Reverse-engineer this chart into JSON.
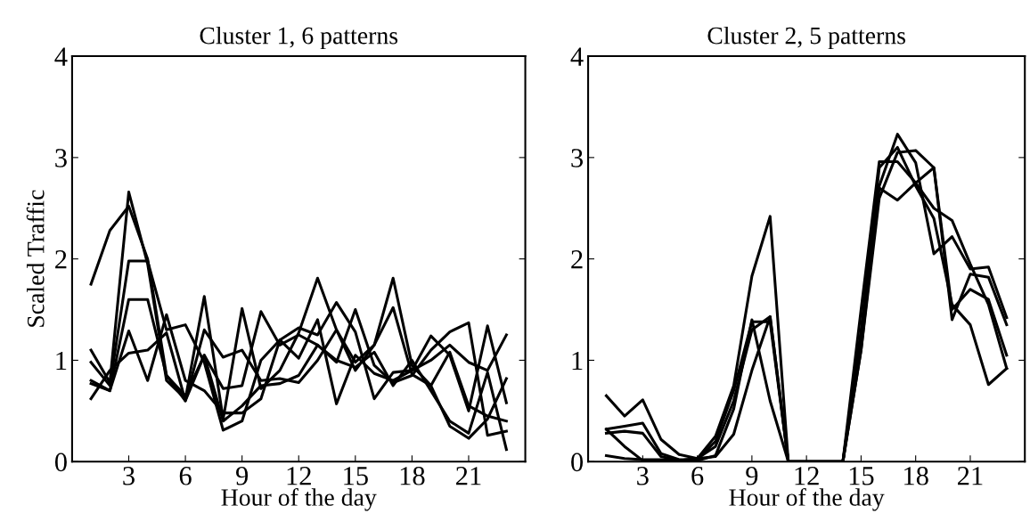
{
  "chart_data": [
    {
      "type": "line",
      "title": "Cluster 1, 6 patterns",
      "xlabel": "Hour of the day",
      "ylabel": "Scaled Traffic",
      "x": [
        1,
        2,
        3,
        4,
        5,
        6,
        7,
        8,
        9,
        10,
        11,
        12,
        13,
        14,
        15,
        16,
        17,
        18,
        19,
        20,
        21,
        22,
        23
      ],
      "xlim": [
        0,
        24
      ],
      "xticks": [
        3,
        6,
        9,
        12,
        15,
        18,
        21
      ],
      "ylim": [
        0,
        4
      ],
      "yticks": [
        0,
        1,
        2,
        3,
        4
      ],
      "grid": false,
      "legend": false,
      "series": [
        {
          "color": "#000000",
          "values": [
            1.75,
            2.28,
            2.52,
            2.0,
            0.85,
            0.65,
            1.05,
            0.72,
            0.75,
            1.48,
            1.15,
            1.25,
            1.15,
            0.98,
            1.5,
            0.95,
            0.78,
            0.85,
            1.1,
            1.28,
            1.37,
            0.26,
            0.3
          ]
        },
        {
          "color": "#000000",
          "values": [
            1.1,
            0.78,
            2.66,
            1.95,
            0.8,
            0.62,
            1.63,
            0.42,
            1.51,
            0.72,
            0.9,
            1.27,
            1.81,
            1.3,
            0.9,
            1.15,
            1.81,
            0.95,
            0.75,
            1.08,
            0.55,
            0.45,
            0.4
          ]
        },
        {
          "color": "#000000",
          "values": [
            0.98,
            0.75,
            1.98,
            1.98,
            1.3,
            1.35,
            0.98,
            0.31,
            0.4,
            1.0,
            1.2,
            1.32,
            1.25,
            1.57,
            1.28,
            0.62,
            0.88,
            0.9,
            1.0,
            1.15,
            0.98,
            0.9,
            1.25
          ]
        },
        {
          "color": "#000000",
          "values": [
            0.8,
            0.7,
            1.6,
            1.6,
            0.85,
            0.6,
            1.3,
            1.03,
            1.1,
            0.8,
            0.82,
            0.78,
            1.0,
            1.3,
            0.98,
            1.15,
            1.52,
            0.86,
            0.75,
            0.35,
            0.23,
            0.42,
            0.82
          ]
        },
        {
          "color": "#000000",
          "values": [
            0.77,
            0.7,
            1.29,
            0.8,
            1.45,
            0.8,
            0.7,
            0.48,
            0.48,
            0.62,
            1.2,
            1.02,
            1.4,
            0.57,
            1.05,
            0.87,
            0.8,
            0.9,
            1.24,
            1.05,
            0.5,
            1.34,
            0.58
          ]
        },
        {
          "color": "#000000",
          "values": [
            0.62,
            0.9,
            1.07,
            1.1,
            1.27,
            0.6,
            1.05,
            0.4,
            0.55,
            0.75,
            0.77,
            0.85,
            1.15,
            1.0,
            0.93,
            1.08,
            0.75,
            1.0,
            0.7,
            0.4,
            0.28,
            0.88,
            0.12
          ]
        }
      ]
    },
    {
      "type": "line",
      "title": "Cluster 2, 5 patterns",
      "xlabel": "Hour of the day",
      "x": [
        1,
        2,
        3,
        4,
        5,
        6,
        7,
        8,
        9,
        10,
        11,
        12,
        13,
        14,
        15,
        16,
        17,
        18,
        19,
        20,
        21,
        22,
        23
      ],
      "xlim": [
        0,
        24
      ],
      "xticks": [
        3,
        6,
        9,
        12,
        15,
        18,
        21
      ],
      "ylim": [
        0,
        4
      ],
      "yticks": [
        0,
        1,
        2,
        3,
        4
      ],
      "grid": false,
      "legend": false,
      "series": [
        {
          "color": "#000000",
          "values": [
            0.65,
            0.45,
            0.61,
            0.22,
            0.07,
            0.03,
            0.25,
            0.75,
            1.83,
            2.42,
            0,
            0,
            0,
            0,
            1.5,
            2.96,
            2.96,
            2.75,
            2.9,
            1.4,
            1.85,
            1.82,
            1.35
          ]
        },
        {
          "color": "#000000",
          "values": [
            0.32,
            0.35,
            0.38,
            0.08,
            0.02,
            0.02,
            0.2,
            0.7,
            1.38,
            1.38,
            0,
            0,
            0,
            0,
            1.1,
            2.72,
            3.23,
            2.95,
            2.05,
            2.22,
            1.9,
            1.92,
            1.42
          ]
        },
        {
          "color": "#000000",
          "values": [
            0.28,
            0.3,
            0.28,
            0.05,
            0.01,
            0.03,
            0.15,
            0.6,
            1.3,
            1.43,
            0,
            0,
            0,
            0,
            1.2,
            2.7,
            2.58,
            2.75,
            2.5,
            2.38,
            1.95,
            1.55,
            0.92
          ]
        },
        {
          "color": "#000000",
          "values": [
            0.32,
            0.15,
            0.01,
            0.01,
            0.01,
            0.01,
            0.06,
            0.52,
            1.4,
            0.6,
            0,
            0,
            0,
            0,
            1.3,
            2.9,
            3.1,
            2.72,
            2.4,
            1.55,
            1.35,
            0.76,
            0.92
          ]
        },
        {
          "color": "#000000",
          "values": [
            0.06,
            0.03,
            0.02,
            0.02,
            0.01,
            0.03,
            0.05,
            0.27,
            0.9,
            1.43,
            0,
            0,
            0,
            0,
            1.1,
            2.6,
            3.05,
            3.07,
            2.9,
            1.5,
            1.7,
            1.6,
            1.05
          ]
        }
      ]
    }
  ]
}
